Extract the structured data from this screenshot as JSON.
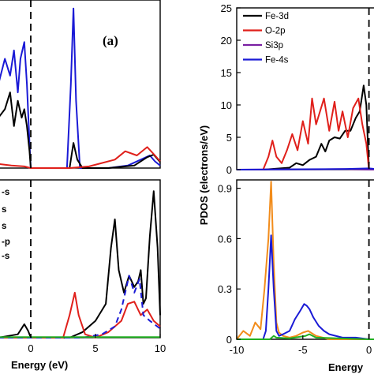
{
  "figure": {
    "panel_tag": "(a)",
    "left_xlabel": "Energy (eV)",
    "right_xlabel": "Energy",
    "right_ylabel": "PDOS (electrons/eV)",
    "cropped_legend_fragments": [
      "-s",
      "s",
      "s",
      "-p",
      "-s"
    ],
    "colors": {
      "black": "#000000",
      "red": "#e0201b",
      "purple": "#7a1fa2",
      "blue": "#1a1ad6",
      "orange": "#f28c1b",
      "green": "#22b022",
      "dashed_line": "#000000"
    }
  },
  "chart_data": [
    {
      "id": "top-left",
      "type": "line",
      "xlim": [
        -2.5,
        10
      ],
      "xticks": [],
      "ylim": [
        0,
        20
      ],
      "yticks": [],
      "fermi_level": 0,
      "series": [
        {
          "color": "blue",
          "x": [
            -2.5,
            -2.0,
            -1.6,
            -1.3,
            -1.0,
            -0.8,
            -0.5,
            -0.3,
            -0.1,
            0,
            0.5,
            2.8,
            3.1,
            3.3,
            3.5,
            3.8,
            4.2,
            6,
            7.5,
            8.5,
            9.2,
            9.6,
            10
          ],
          "y": [
            10,
            13,
            11,
            14,
            9,
            13,
            15,
            10,
            3,
            0,
            0,
            0,
            10,
            19,
            8,
            0,
            0,
            0,
            0.3,
            1,
            1.5,
            0.8,
            0.3
          ]
        },
        {
          "color": "black",
          "x": [
            -2.5,
            -2.0,
            -1.6,
            -1.3,
            -1.0,
            -0.7,
            -0.5,
            -0.3,
            -0.1,
            0,
            0.5,
            3.0,
            3.3,
            3.6,
            4.0,
            6,
            8.0,
            9.0,
            9.5,
            10
          ],
          "y": [
            6,
            7,
            9,
            5,
            8,
            6,
            7,
            5,
            2,
            0,
            0,
            0,
            3,
            1,
            0,
            0,
            0.3,
            1.3,
            1.6,
            0.7
          ]
        },
        {
          "color": "red",
          "x": [
            -2.5,
            -1.5,
            -0.5,
            0,
            0.5,
            3.0,
            4.5,
            6.5,
            7.3,
            8.2,
            9.0,
            9.6,
            10
          ],
          "y": [
            0.5,
            0.3,
            0.2,
            0,
            0,
            0,
            0.2,
            1,
            2,
            1.5,
            2.5,
            1.5,
            0.8
          ]
        }
      ]
    },
    {
      "id": "bottom-left",
      "type": "line",
      "xlim": [
        -2.5,
        10
      ],
      "xticks": [
        0,
        5,
        10
      ],
      "ylim": [
        0,
        14
      ],
      "yticks": [],
      "fermi_level": 0,
      "series": [
        {
          "color": "black",
          "x": [
            -2.5,
            -1.0,
            -0.5,
            -0.2,
            0,
            3,
            4,
            5,
            5.8,
            6.2,
            6.5,
            6.8,
            7.2,
            7.6,
            8.0,
            8.3,
            8.5,
            8.7,
            8.9,
            9.2,
            9.5,
            9.8,
            10
          ],
          "y": [
            0,
            0.3,
            1.2,
            0.6,
            0,
            0,
            0.5,
            1.5,
            3,
            8,
            10.5,
            6,
            4,
            5.5,
            4.5,
            5,
            6,
            3,
            3.5,
            9,
            13,
            8,
            2
          ]
        },
        {
          "color": "red",
          "x": [
            -2.5,
            0,
            2.5,
            3.0,
            3.4,
            3.7,
            4.2,
            5,
            6,
            7,
            7.5,
            8,
            8.5,
            9,
            9.5,
            10
          ],
          "y": [
            0,
            0,
            0,
            2,
            4,
            2,
            0.3,
            0,
            0.5,
            1.5,
            3,
            3.2,
            2,
            2.5,
            1.5,
            1
          ],
          "dashed": false
        },
        {
          "color": "blue",
          "dashed": true,
          "x": [
            -2.5,
            0,
            4,
            5.5,
            6.5,
            7.0,
            7.6,
            8.0,
            8.4,
            8.7,
            9.2,
            10
          ],
          "y": [
            0,
            0,
            0,
            0.3,
            1,
            2.5,
            5.5,
            4,
            5.2,
            2,
            1.5,
            0.8
          ]
        },
        {
          "color": "green",
          "x": [
            -2.5,
            10
          ],
          "y": [
            0.05,
            0.05
          ]
        }
      ]
    },
    {
      "id": "top-right",
      "type": "line",
      "xlim": [
        -10,
        0.5
      ],
      "ylim": [
        0,
        25
      ],
      "yticks": [
        0,
        5,
        10,
        15,
        20,
        25
      ],
      "xticks": [],
      "fermi_level": 0,
      "legend": {
        "placement": "top-left",
        "entries": [
          {
            "label": "Fe-3d",
            "color": "black"
          },
          {
            "label": "O-2p",
            "color": "red"
          },
          {
            "label": "Si3p",
            "color": "purple"
          },
          {
            "label": "Fe-4s",
            "color": "blue"
          }
        ]
      },
      "series": [
        {
          "name": "Fe-3d",
          "color": "black",
          "x": [
            -10,
            -8,
            -6,
            -5.5,
            -5,
            -4.5,
            -4,
            -3.6,
            -3.3,
            -3,
            -2.6,
            -2.2,
            -1.8,
            -1.4,
            -1.0,
            -0.7,
            -0.4,
            -0.2,
            -0.1,
            0,
            0.5
          ],
          "y": [
            0,
            0,
            0.3,
            1,
            0.7,
            1.5,
            2,
            4,
            2.8,
            4.5,
            5,
            4.8,
            6,
            6,
            8,
            9,
            13,
            10,
            5,
            0,
            0
          ]
        },
        {
          "name": "O-2p",
          "color": "red",
          "x": [
            -10,
            -8.0,
            -7.6,
            -7.3,
            -7.0,
            -6.6,
            -6.2,
            -5.8,
            -5.4,
            -5.0,
            -4.6,
            -4.3,
            -4.0,
            -3.7,
            -3.4,
            -3.0,
            -2.6,
            -2.3,
            -2.0,
            -1.6,
            -1.2,
            -0.8,
            -0.5,
            -0.2,
            0,
            0.5
          ],
          "y": [
            0,
            0,
            2,
            4.5,
            2,
            1,
            3,
            5.5,
            3,
            7.5,
            4,
            11,
            7,
            9,
            11,
            6,
            10.5,
            6,
            9,
            5,
            9.5,
            11,
            7,
            4,
            0,
            0
          ]
        },
        {
          "name": "Si3p",
          "color": "purple",
          "x": [
            -10,
            -4,
            -2,
            0,
            0.5
          ],
          "y": [
            0,
            0.05,
            0.1,
            0,
            0
          ]
        },
        {
          "name": "Fe-4s",
          "color": "blue",
          "x": [
            -10,
            -2,
            0,
            0.5
          ],
          "y": [
            0,
            0.1,
            0.2,
            0.1
          ]
        }
      ]
    },
    {
      "id": "bottom-right",
      "type": "line",
      "xlim": [
        -10,
        0.5
      ],
      "xticks": [
        -10,
        -5,
        0
      ],
      "ylim": [
        0,
        0.95
      ],
      "yticks": [
        0,
        0.3,
        0.6,
        0.9
      ],
      "fermi_level": 0,
      "series": [
        {
          "color": "orange",
          "x": [
            -10,
            -9.5,
            -9,
            -8.6,
            -8.2,
            -7.9,
            -7.6,
            -7.4,
            -7.2,
            -7.0,
            -6.8,
            -6.5,
            -6.0,
            -5.5,
            -5.0,
            -4.6,
            -4.0,
            -3.5,
            -3.0,
            -2.0,
            -1.0,
            0,
            0.5
          ],
          "y": [
            0,
            0.05,
            0.02,
            0.1,
            0.06,
            0.3,
            0.6,
            0.94,
            0.45,
            0.1,
            0.04,
            0.02,
            0.01,
            0.02,
            0.04,
            0.05,
            0.02,
            0.01,
            0,
            0,
            0,
            0,
            0
          ]
        },
        {
          "color": "blue",
          "x": [
            -10,
            -8,
            -7.8,
            -7.6,
            -7.4,
            -7.2,
            -7.0,
            -6.8,
            -6.5,
            -6.0,
            -5.6,
            -5.2,
            -4.9,
            -4.7,
            -4.5,
            -4.2,
            -3.8,
            -3.4,
            -3.0,
            -2.0,
            -1.0,
            0,
            0.5
          ],
          "y": [
            0,
            0,
            0.05,
            0.3,
            0.62,
            0.3,
            0.05,
            0.02,
            0.03,
            0.05,
            0.12,
            0.17,
            0.21,
            0.2,
            0.18,
            0.13,
            0.08,
            0.05,
            0.03,
            0.01,
            0.01,
            0,
            0
          ]
        },
        {
          "color": "green",
          "x": [
            -10,
            -7.5,
            -7.2,
            -7.0,
            -6,
            -4.8,
            -4.5,
            -4,
            0,
            0.5
          ],
          "y": [
            0,
            0,
            0.02,
            0.01,
            0.005,
            0.02,
            0.03,
            0.01,
            0,
            0
          ]
        }
      ]
    }
  ]
}
